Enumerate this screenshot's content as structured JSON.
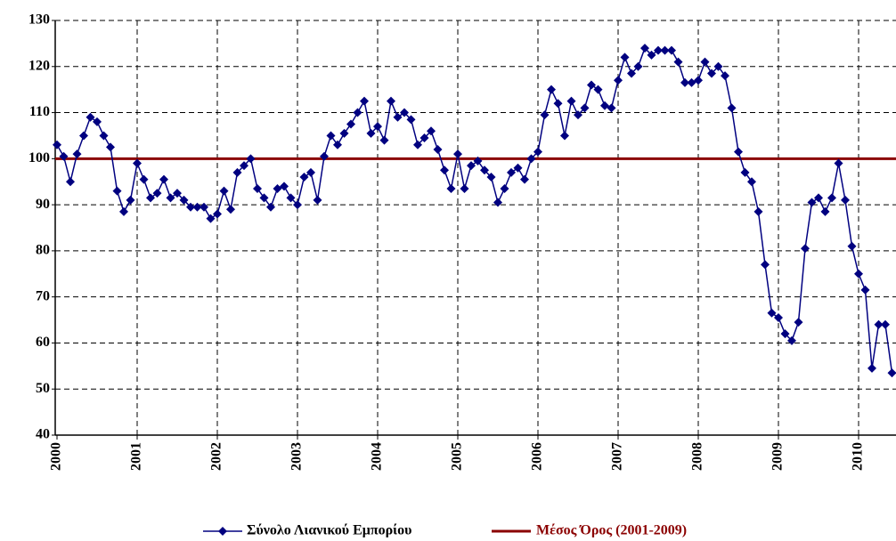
{
  "chart_data": {
    "type": "line",
    "categories": [
      "2000",
      null,
      null,
      null,
      null,
      null,
      null,
      null,
      null,
      null,
      null,
      null,
      "2001",
      null,
      null,
      null,
      null,
      null,
      null,
      null,
      null,
      null,
      null,
      null,
      "2002",
      null,
      null,
      null,
      null,
      null,
      null,
      null,
      null,
      null,
      null,
      null,
      "2003",
      null,
      null,
      null,
      null,
      null,
      null,
      null,
      null,
      null,
      null,
      null,
      "2004",
      null,
      null,
      null,
      null,
      null,
      null,
      null,
      null,
      null,
      null,
      null,
      "2005",
      null,
      null,
      null,
      null,
      null,
      null,
      null,
      null,
      null,
      null,
      null,
      "2006",
      null,
      null,
      null,
      null,
      null,
      null,
      null,
      null,
      null,
      null,
      null,
      "2007",
      null,
      null,
      null,
      null,
      null,
      null,
      null,
      null,
      null,
      null,
      null,
      "2008",
      null,
      null,
      null,
      null,
      null,
      null,
      null,
      null,
      null,
      null,
      null,
      "2009",
      null,
      null,
      null,
      null,
      null,
      null,
      null,
      null,
      null,
      null,
      null,
      "2010",
      null,
      null,
      null,
      null,
      null
    ],
    "series": [
      {
        "name": "Σύνολο Λιανικού Εμπορίου",
        "color": "#000080",
        "values": [
          103,
          100.5,
          95,
          101,
          105,
          109,
          108,
          105,
          102.5,
          93,
          88.5,
          91,
          99,
          95.5,
          91.5,
          92.5,
          95.5,
          91.5,
          92.5,
          91,
          89.5,
          89.5,
          89.5,
          87,
          88,
          93,
          89,
          97,
          98.5,
          100,
          93.5,
          91.5,
          89.5,
          93.5,
          94,
          91.5,
          90,
          96,
          97,
          91,
          100.5,
          105,
          103,
          105.5,
          107.5,
          110,
          112.5,
          105.5,
          107,
          104,
          112.5,
          109,
          110,
          108.5,
          103,
          104.5,
          106,
          102,
          97.5,
          93.5,
          101,
          93.5,
          98.5,
          99.5,
          97.5,
          96,
          90.5,
          93.5,
          97,
          98,
          95.5,
          100,
          101.5,
          109.5,
          115,
          112,
          105,
          112.5,
          109.5,
          111,
          116,
          115,
          111.5,
          111,
          117,
          122,
          118.5,
          120,
          124,
          122.5,
          123.5,
          123.5,
          123.5,
          121,
          116.5,
          116.5,
          117,
          121,
          118.5,
          120,
          118,
          111,
          101.5,
          97,
          95,
          88.5,
          77,
          66.5,
          65.5,
          62,
          60.5,
          64.5,
          80.5,
          90.5,
          91.5,
          88.5,
          91.5,
          99,
          91,
          81,
          75,
          71.5,
          54.5,
          64,
          64,
          53.5
        ]
      }
    ],
    "reference_line": {
      "name": "Μέσος Όρος (2001-2009)",
      "value": 100,
      "color": "#8b0000"
    },
    "ylim": [
      40,
      130
    ],
    "yticks": [
      40,
      50,
      60,
      70,
      80,
      90,
      100,
      110,
      120,
      130
    ],
    "grid": true
  }
}
